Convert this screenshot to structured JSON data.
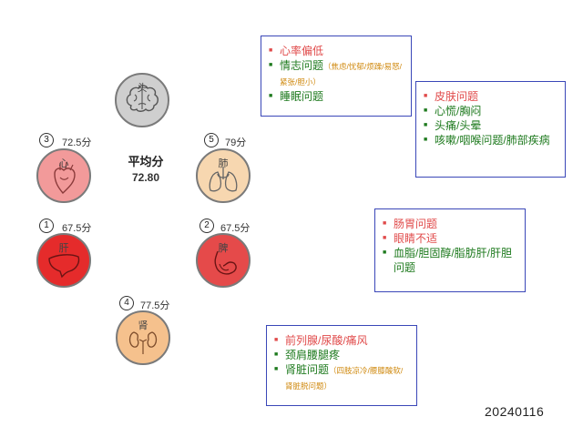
{
  "average": {
    "title": "平均分",
    "value": "72.80"
  },
  "organs": {
    "head": {
      "label": "头",
      "color": "#cfcfcf"
    },
    "heart": {
      "label": "心",
      "badge": "3",
      "score": "72.5分",
      "color": "#f29a9a"
    },
    "lung": {
      "label": "肺",
      "badge": "5",
      "score": "79分",
      "color": "#f7d7b0"
    },
    "liver": {
      "label": "肝",
      "badge": "1",
      "score": "67.5分",
      "color": "#e52b2b"
    },
    "spleen": {
      "label": "脾",
      "badge": "2",
      "score": "67.5分",
      "color": "#e54a4a"
    },
    "kidney": {
      "label": "肾",
      "badge": "4",
      "score": "77.5分",
      "color": "#f5c18d"
    }
  },
  "boxes": {
    "heart_box": {
      "items": [
        {
          "text": "心率偏低",
          "status": "red"
        },
        {
          "text": "情志问题",
          "note": "（焦虑/忧郁/烦躁/易怒/紧张/胆小）",
          "status": "green"
        },
        {
          "text": "睡眠问题",
          "status": "green"
        }
      ]
    },
    "lung_box": {
      "items": [
        {
          "text": "皮肤问题",
          "status": "red"
        },
        {
          "text": "心慌/胸闷",
          "status": "green"
        },
        {
          "text": "头痛/头晕",
          "status": "green"
        },
        {
          "text": "咳嗽/咽喉问题/肺部疾病",
          "status": "green"
        }
      ]
    },
    "spleen_box": {
      "items": [
        {
          "text": "肠胃问题",
          "status": "red"
        },
        {
          "text": "眼睛不适",
          "status": "red"
        },
        {
          "text": "血脂/胆固醇/脂肪肝/肝胆问题",
          "status": "green"
        }
      ]
    },
    "kidney_box": {
      "items": [
        {
          "text": "前列腺/尿酸/痛风",
          "status": "red"
        },
        {
          "text": "颈肩腰腿疼",
          "status": "green"
        },
        {
          "text": "肾脏问题",
          "note": "（四肢凉冷/腰膝酸软/肾脏脱问题）",
          "status": "green"
        }
      ]
    }
  },
  "date": "20240116"
}
